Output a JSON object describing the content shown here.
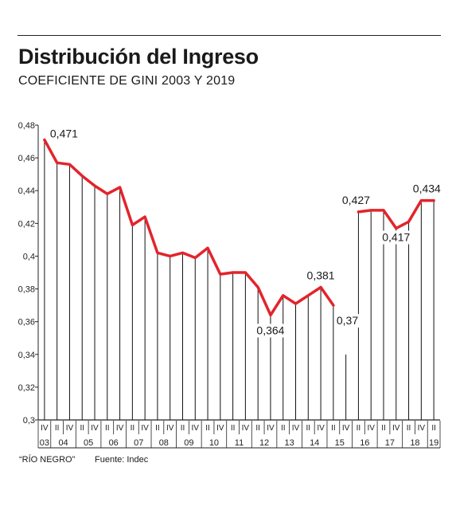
{
  "header": {
    "title": "Distribución del Ingreso",
    "subtitle": "COEFICIENTE DE GINI 2003 Y 2019"
  },
  "footer": {
    "credit": "“RÍO NEGRO”",
    "source": "Fuente: Indec"
  },
  "colors": {
    "line": "#e3242b",
    "axis": "#222222"
  },
  "chart_data": {
    "type": "line",
    "title": "Distribución del Ingreso",
    "subtitle": "COEFICIENTE DE GINI 2003 Y 2019",
    "ylim": [
      0.3,
      0.48
    ],
    "y_ticks": [
      "0,3",
      "0,32",
      "0,34",
      "0,36",
      "0,38",
      "0,4",
      "0,42",
      "0,44",
      "0,46",
      "0,48"
    ],
    "grid": "vertical drop lines from each point to the x-axis",
    "quarters": [
      "IV",
      "II",
      "IV",
      "II",
      "IV",
      "II",
      "IV",
      "II",
      "IV",
      "II",
      "IV",
      "II",
      "IV",
      "II",
      "IV",
      "II",
      "IV",
      "II",
      "IV",
      "II",
      "IV",
      "II",
      "IV",
      "II",
      "IV",
      "II",
      "IV",
      "II",
      "IV",
      "II",
      "IV",
      "II"
    ],
    "years": [
      "03",
      "04",
      "05",
      "06",
      "07",
      "08",
      "09",
      "10",
      "11",
      "12",
      "13",
      "14",
      "15",
      "16",
      "17",
      "18",
      "19"
    ],
    "series": [
      {
        "values": [
          0.471,
          0.457,
          0.456,
          0.449,
          0.443,
          0.438,
          0.442,
          0.419,
          0.424,
          0.402,
          0.4,
          0.402,
          0.399,
          0.405,
          0.389,
          0.39,
          0.39,
          0.381,
          0.364,
          0.376,
          0.371,
          0.376,
          0.381,
          0.37,
          0.34,
          0.427,
          0.428,
          0.428,
          0.417,
          0.421,
          0.434,
          0.434
        ],
        "breaks_after_index": [
          23,
          24
        ],
        "no_marker_index": [
          24
        ]
      }
    ],
    "data_labels": [
      {
        "index": 0,
        "text": "0,471"
      },
      {
        "index": 18,
        "text": "0,364"
      },
      {
        "index": 22,
        "text": "0,381"
      },
      {
        "index": 23,
        "text": "0,37"
      },
      {
        "index": 25,
        "text": "0,427"
      },
      {
        "index": 28,
        "text": "0,417"
      },
      {
        "index": 30,
        "text": "0,434"
      }
    ]
  }
}
